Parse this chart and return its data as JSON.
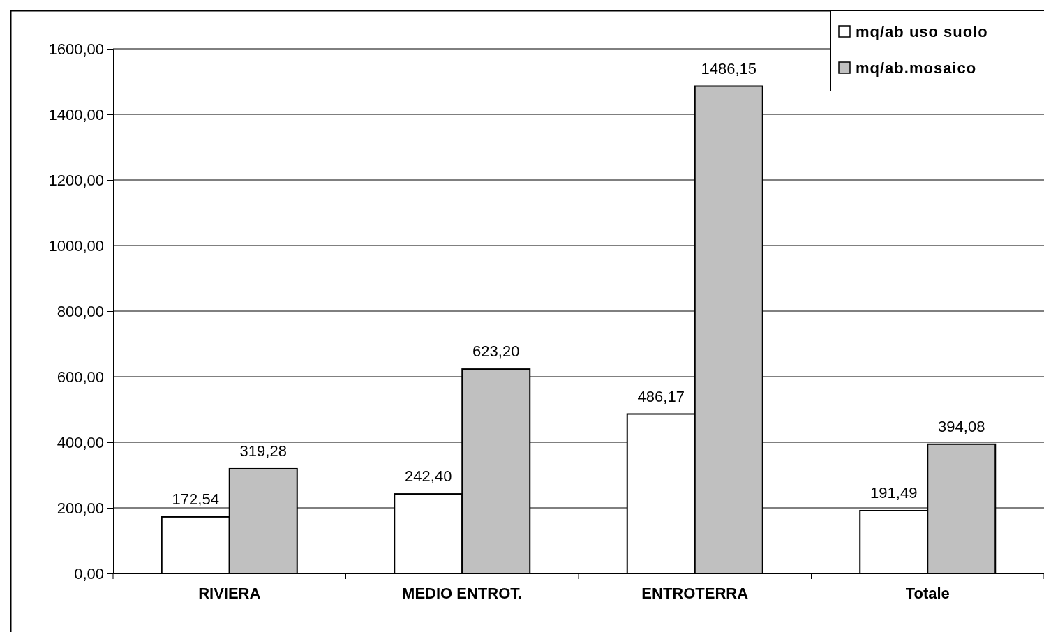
{
  "chart_data": {
    "type": "bar",
    "categories": [
      "RIVIERA",
      "MEDIO ENTROT.",
      "ENTROTERRA",
      "Totale"
    ],
    "series": [
      {
        "name": "mq/ab uso suolo",
        "color": "#ffffff",
        "values": [
          172.54,
          242.4,
          486.17,
          191.49
        ],
        "value_labels": [
          "172,54",
          "242,40",
          "486,17",
          "191,49"
        ]
      },
      {
        "name": "mq/ab.mosaico",
        "color": "#c0c0c0",
        "values": [
          319.28,
          623.2,
          1486.15,
          394.08
        ],
        "value_labels": [
          "319,28",
          "623,20",
          "1486,15",
          "394,08"
        ]
      }
    ],
    "ylim": [
      0,
      1600
    ],
    "yticks": [
      {
        "value": 0,
        "label": "0,00"
      },
      {
        "value": 200,
        "label": "200,00"
      },
      {
        "value": 400,
        "label": "400,00"
      },
      {
        "value": 600,
        "label": "600,00"
      },
      {
        "value": 800,
        "label": "800,00"
      },
      {
        "value": 1000,
        "label": "1000,00"
      },
      {
        "value": 1200,
        "label": "1200,00"
      },
      {
        "value": 1400,
        "label": "1400,00"
      },
      {
        "value": 1600,
        "label": "1600,00"
      }
    ],
    "grid": "y",
    "legend": "top right"
  }
}
